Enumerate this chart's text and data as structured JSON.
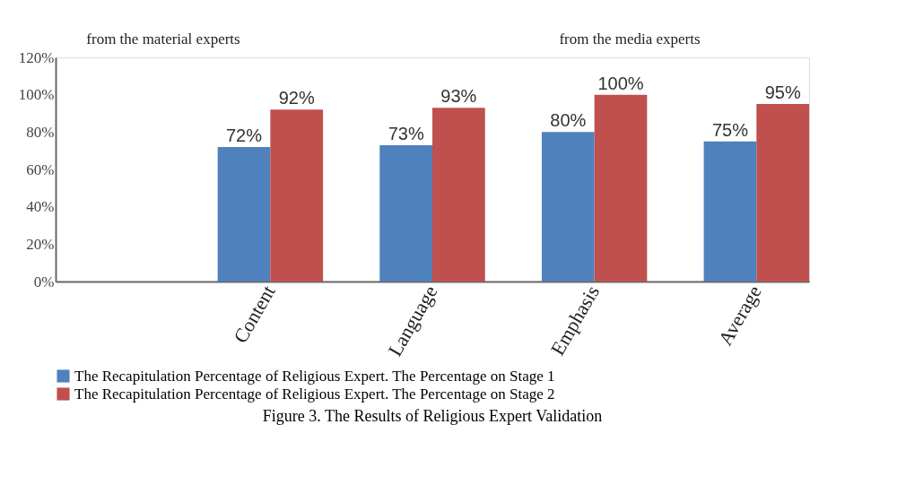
{
  "chart_data": {
    "type": "bar",
    "title": "Figure 3. The Results of Religious Expert Validation",
    "annotations": [
      "from the material experts",
      "from the media experts"
    ],
    "categories": [
      null,
      "Content",
      "Language",
      "Emphasis",
      "Average"
    ],
    "series": [
      {
        "name": "The Recapitulation Percentage of Religious Expert. The Percentage on Stage 1",
        "color": "#4f81bd",
        "values": [
          null,
          72,
          73,
          80,
          75
        ]
      },
      {
        "name": "The Recapitulation Percentage of Religious Expert. The Percentage on Stage 2",
        "color": "#c0504d",
        "values": [
          null,
          92,
          93,
          100,
          95
        ]
      }
    ],
    "ylim": [
      0,
      120
    ],
    "yticks": [
      {
        "value": 0,
        "label": "0%"
      },
      {
        "value": 20,
        "label": "20%"
      },
      {
        "value": 40,
        "label": "40%"
      },
      {
        "value": 60,
        "label": "60%"
      },
      {
        "value": 80,
        "label": "80%"
      },
      {
        "value": 100,
        "label": "100%"
      },
      {
        "value": 120,
        "label": "120%"
      }
    ],
    "value_labels": [
      [
        null,
        "72%",
        "73%",
        "80%",
        "75%"
      ],
      [
        null,
        "92%",
        "93%",
        "100%",
        "95%"
      ]
    ],
    "grid": false,
    "legend": "bottom"
  }
}
